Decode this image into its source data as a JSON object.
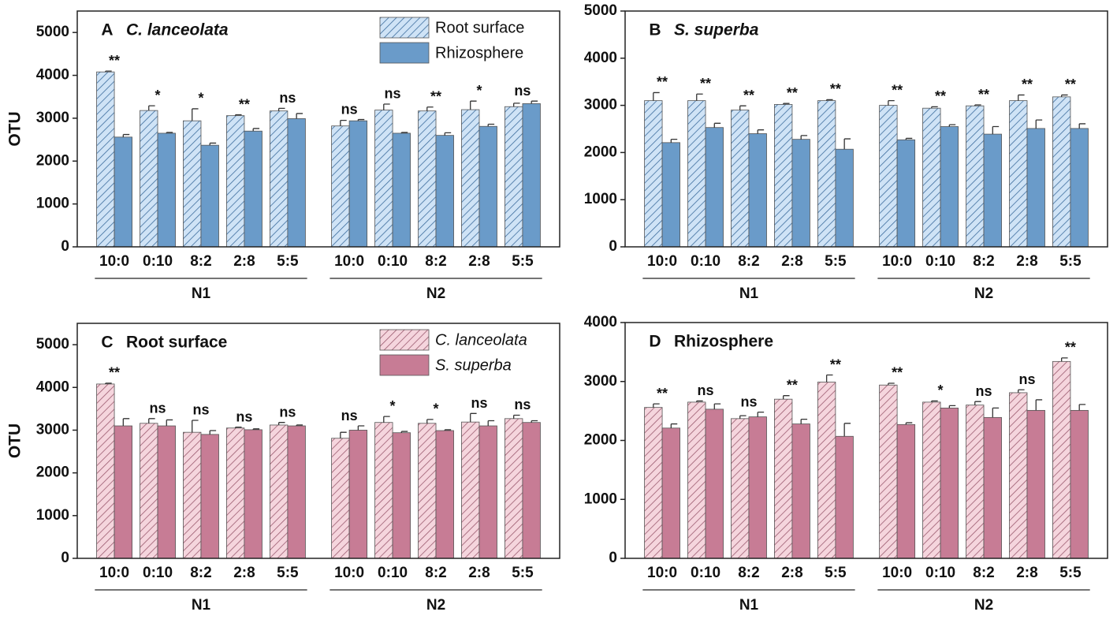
{
  "chart_data": [
    {
      "type": "bar",
      "label": "A",
      "title": "C. lanceolata",
      "title_italic": true,
      "ylabel": "OTU",
      "categories": [
        "10:0",
        "0:10",
        "8:2",
        "2:8",
        "5:5",
        "10:0",
        "0:10",
        "8:2",
        "2:8",
        "5:5"
      ],
      "groups": [
        "N1",
        "N2"
      ],
      "series": [
        {
          "name": "Root surface",
          "color": "#cfe3f6",
          "hatch": true,
          "values": [
            4080,
            3180,
            2940,
            3060,
            3170,
            2820,
            3190,
            3170,
            3200,
            3270
          ],
          "errors": [
            20,
            110,
            280,
            20,
            60,
            130,
            140,
            90,
            200,
            80
          ]
        },
        {
          "name": "Rhizosphere",
          "color": "#6a9bc9",
          "hatch": false,
          "values": [
            2560,
            2650,
            2370,
            2700,
            2990,
            2940,
            2650,
            2600,
            2810,
            3340
          ],
          "errors": [
            60,
            20,
            50,
            60,
            120,
            30,
            20,
            60,
            50,
            60
          ]
        }
      ],
      "significance": [
        "**",
        "*",
        "*",
        "**",
        "ns",
        "ns",
        "ns",
        "**",
        "*",
        "ns"
      ],
      "ylim": [
        0,
        5500
      ],
      "yticks": [
        0,
        1000,
        2000,
        3000,
        4000,
        5000
      ],
      "legend": "upper right",
      "legend_italic": false
    },
    {
      "type": "bar",
      "label": "B",
      "title": "S. superba",
      "title_italic": true,
      "categories": [
        "10:0",
        "0:10",
        "8:2",
        "2:8",
        "5:5",
        "10:0",
        "0:10",
        "8:2",
        "2:8",
        "5:5"
      ],
      "groups": [
        "N1",
        "N2"
      ],
      "series": [
        {
          "color": "#cfe3f6",
          "hatch": true,
          "values": [
            3100,
            3100,
            2900,
            3020,
            3100,
            3000,
            2940,
            2990,
            3100,
            3180
          ],
          "errors": [
            170,
            140,
            90,
            20,
            20,
            100,
            30,
            20,
            120,
            40
          ]
        },
        {
          "color": "#6a9bc9",
          "hatch": false,
          "values": [
            2210,
            2530,
            2400,
            2280,
            2070,
            2270,
            2550,
            2390,
            2510,
            2510
          ],
          "errors": [
            70,
            90,
            80,
            80,
            220,
            30,
            40,
            160,
            180,
            100
          ]
        }
      ],
      "significance": [
        "**",
        "**",
        "**",
        "**",
        "**",
        "**",
        "**",
        "**",
        "**",
        "**"
      ],
      "ylim": [
        0,
        5000
      ],
      "yticks": [
        0,
        1000,
        2000,
        3000,
        4000,
        5000
      ]
    },
    {
      "type": "bar",
      "label": "C",
      "title": "Root surface",
      "title_italic": false,
      "ylabel": "OTU",
      "categories": [
        "10:0",
        "0:10",
        "8:2",
        "2:8",
        "5:5",
        "10:0",
        "0:10",
        "8:2",
        "2:8",
        "5:5"
      ],
      "groups": [
        "N1",
        "N2"
      ],
      "series": [
        {
          "name": "C. lanceolata",
          "color": "#f5d5dd",
          "hatch": true,
          "values": [
            4080,
            3160,
            2950,
            3050,
            3120,
            2810,
            3180,
            3160,
            3190,
            3270
          ],
          "errors": [
            20,
            110,
            280,
            20,
            60,
            140,
            140,
            90,
            200,
            80
          ]
        },
        {
          "name": "S. superba",
          "color": "#c77c95",
          "hatch": false,
          "values": [
            3100,
            3100,
            2900,
            3010,
            3100,
            3000,
            2940,
            2990,
            3100,
            3180
          ],
          "errors": [
            170,
            140,
            90,
            20,
            20,
            100,
            30,
            20,
            120,
            40
          ]
        }
      ],
      "significance": [
        "**",
        "ns",
        "ns",
        "ns",
        "ns",
        "ns",
        "*",
        "*",
        "ns",
        "ns"
      ],
      "ylim": [
        0,
        5500
      ],
      "yticks": [
        0,
        1000,
        2000,
        3000,
        4000,
        5000
      ],
      "legend": "upper right",
      "legend_italic": true
    },
    {
      "type": "bar",
      "label": "D",
      "title": "Rhizosphere",
      "title_italic": false,
      "categories": [
        "10:0",
        "0:10",
        "8:2",
        "2:8",
        "5:5",
        "10:0",
        "0:10",
        "8:2",
        "2:8",
        "5:5"
      ],
      "groups": [
        "N1",
        "N2"
      ],
      "series": [
        {
          "color": "#f5d5dd",
          "hatch": true,
          "values": [
            2560,
            2650,
            2370,
            2700,
            2990,
            2940,
            2650,
            2600,
            2810,
            3340
          ],
          "errors": [
            60,
            20,
            50,
            60,
            120,
            30,
            20,
            60,
            50,
            60
          ]
        },
        {
          "color": "#c77c95",
          "hatch": false,
          "values": [
            2210,
            2530,
            2400,
            2280,
            2070,
            2270,
            2550,
            2390,
            2510,
            2510
          ],
          "errors": [
            70,
            90,
            80,
            80,
            220,
            30,
            40,
            160,
            180,
            100
          ]
        }
      ],
      "significance": [
        "**",
        "ns",
        "ns",
        "**",
        "**",
        "**",
        "*",
        "ns",
        "ns",
        "**"
      ],
      "ylim": [
        0,
        4000
      ],
      "yticks": [
        0,
        1000,
        2000,
        3000,
        4000
      ]
    }
  ]
}
